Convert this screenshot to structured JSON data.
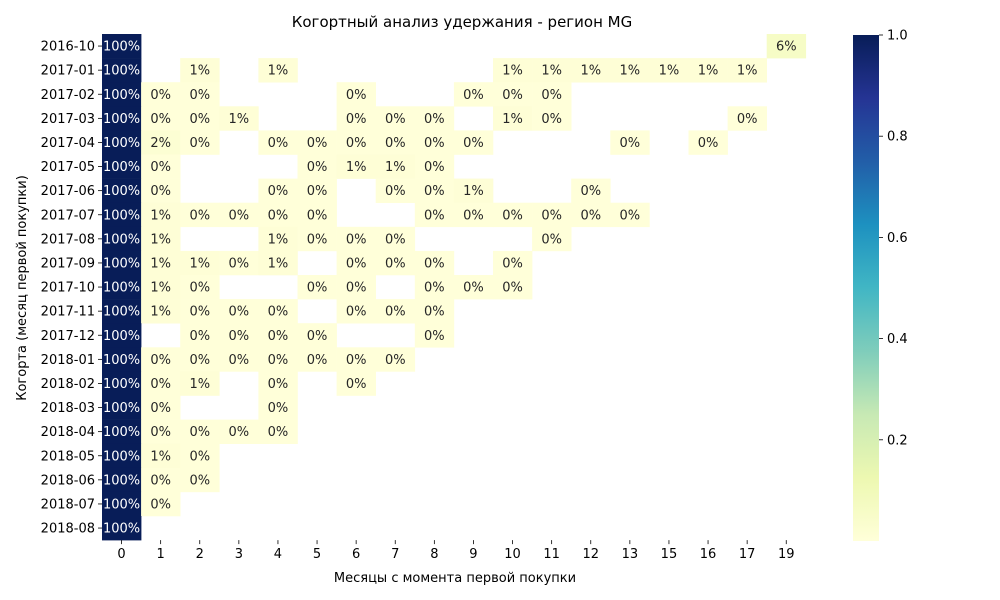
{
  "chart_data": {
    "type": "heatmap",
    "title": "Когортный анализ удержания - регион MG",
    "xlabel": "Месяцы с момента первой покупки",
    "ylabel": "Когорта (месяц первой покупки)",
    "x_categories": [
      "0",
      "1",
      "2",
      "3",
      "4",
      "5",
      "6",
      "7",
      "8",
      "9",
      "10",
      "11",
      "12",
      "13",
      "15",
      "16",
      "17",
      "19"
    ],
    "y_categories": [
      "2016-10",
      "2017-01",
      "2017-02",
      "2017-03",
      "2017-04",
      "2017-05",
      "2017-06",
      "2017-07",
      "2017-08",
      "2017-09",
      "2017-10",
      "2017-11",
      "2017-12",
      "2018-01",
      "2018-02",
      "2018-03",
      "2018-04",
      "2018-05",
      "2018-06",
      "2018-07",
      "2018-08"
    ],
    "value_format": "percent",
    "colormap": "YlGnBu",
    "colorbar": {
      "range": [
        0,
        1.0
      ],
      "ticks": [
        "0.2",
        "0.4",
        "0.6",
        "0.8",
        "1.0"
      ]
    },
    "colors": {
      "low": "#ffffd9",
      "high": "#081d58"
    },
    "cells": [
      {
        "y": "2016-10",
        "x": "0",
        "label": "100%",
        "value": 1.0
      },
      {
        "y": "2016-10",
        "x": "19",
        "label": "6%",
        "value": 0.06
      },
      {
        "y": "2017-01",
        "x": "0",
        "label": "100%",
        "value": 1.0
      },
      {
        "y": "2017-01",
        "x": "2",
        "label": "1%",
        "value": 0.01
      },
      {
        "y": "2017-01",
        "x": "4",
        "label": "1%",
        "value": 0.01
      },
      {
        "y": "2017-01",
        "x": "10",
        "label": "1%",
        "value": 0.01
      },
      {
        "y": "2017-01",
        "x": "11",
        "label": "1%",
        "value": 0.01
      },
      {
        "y": "2017-01",
        "x": "12",
        "label": "1%",
        "value": 0.01
      },
      {
        "y": "2017-01",
        "x": "13",
        "label": "1%",
        "value": 0.01
      },
      {
        "y": "2017-01",
        "x": "15",
        "label": "1%",
        "value": 0.01
      },
      {
        "y": "2017-01",
        "x": "16",
        "label": "1%",
        "value": 0.01
      },
      {
        "y": "2017-01",
        "x": "17",
        "label": "1%",
        "value": 0.01
      },
      {
        "y": "2017-02",
        "x": "0",
        "label": "100%",
        "value": 1.0
      },
      {
        "y": "2017-02",
        "x": "1",
        "label": "0%",
        "value": 0.0
      },
      {
        "y": "2017-02",
        "x": "2",
        "label": "0%",
        "value": 0.0
      },
      {
        "y": "2017-02",
        "x": "6",
        "label": "0%",
        "value": 0.0
      },
      {
        "y": "2017-02",
        "x": "9",
        "label": "0%",
        "value": 0.0
      },
      {
        "y": "2017-02",
        "x": "10",
        "label": "0%",
        "value": 0.0
      },
      {
        "y": "2017-02",
        "x": "11",
        "label": "0%",
        "value": 0.0
      },
      {
        "y": "2017-03",
        "x": "0",
        "label": "100%",
        "value": 1.0
      },
      {
        "y": "2017-03",
        "x": "1",
        "label": "0%",
        "value": 0.0
      },
      {
        "y": "2017-03",
        "x": "2",
        "label": "0%",
        "value": 0.0
      },
      {
        "y": "2017-03",
        "x": "3",
        "label": "1%",
        "value": 0.01
      },
      {
        "y": "2017-03",
        "x": "6",
        "label": "0%",
        "value": 0.0
      },
      {
        "y": "2017-03",
        "x": "7",
        "label": "0%",
        "value": 0.0
      },
      {
        "y": "2017-03",
        "x": "8",
        "label": "0%",
        "value": 0.0
      },
      {
        "y": "2017-03",
        "x": "10",
        "label": "1%",
        "value": 0.01
      },
      {
        "y": "2017-03",
        "x": "11",
        "label": "0%",
        "value": 0.0
      },
      {
        "y": "2017-03",
        "x": "17",
        "label": "0%",
        "value": 0.0
      },
      {
        "y": "2017-04",
        "x": "0",
        "label": "100%",
        "value": 1.0
      },
      {
        "y": "2017-04",
        "x": "1",
        "label": "2%",
        "value": 0.02
      },
      {
        "y": "2017-04",
        "x": "2",
        "label": "0%",
        "value": 0.0
      },
      {
        "y": "2017-04",
        "x": "4",
        "label": "0%",
        "value": 0.0
      },
      {
        "y": "2017-04",
        "x": "5",
        "label": "0%",
        "value": 0.0
      },
      {
        "y": "2017-04",
        "x": "6",
        "label": "0%",
        "value": 0.0
      },
      {
        "y": "2017-04",
        "x": "7",
        "label": "0%",
        "value": 0.0
      },
      {
        "y": "2017-04",
        "x": "8",
        "label": "0%",
        "value": 0.0
      },
      {
        "y": "2017-04",
        "x": "9",
        "label": "0%",
        "value": 0.0
      },
      {
        "y": "2017-04",
        "x": "13",
        "label": "0%",
        "value": 0.0
      },
      {
        "y": "2017-04",
        "x": "16",
        "label": "0%",
        "value": 0.0
      },
      {
        "y": "2017-05",
        "x": "0",
        "label": "100%",
        "value": 1.0
      },
      {
        "y": "2017-05",
        "x": "1",
        "label": "0%",
        "value": 0.0
      },
      {
        "y": "2017-05",
        "x": "5",
        "label": "0%",
        "value": 0.0
      },
      {
        "y": "2017-05",
        "x": "6",
        "label": "1%",
        "value": 0.01
      },
      {
        "y": "2017-05",
        "x": "7",
        "label": "1%",
        "value": 0.01
      },
      {
        "y": "2017-05",
        "x": "8",
        "label": "0%",
        "value": 0.0
      },
      {
        "y": "2017-06",
        "x": "0",
        "label": "100%",
        "value": 1.0
      },
      {
        "y": "2017-06",
        "x": "1",
        "label": "0%",
        "value": 0.0
      },
      {
        "y": "2017-06",
        "x": "4",
        "label": "0%",
        "value": 0.0
      },
      {
        "y": "2017-06",
        "x": "5",
        "label": "0%",
        "value": 0.0
      },
      {
        "y": "2017-06",
        "x": "7",
        "label": "0%",
        "value": 0.0
      },
      {
        "y": "2017-06",
        "x": "8",
        "label": "0%",
        "value": 0.0
      },
      {
        "y": "2017-06",
        "x": "9",
        "label": "1%",
        "value": 0.01
      },
      {
        "y": "2017-06",
        "x": "12",
        "label": "0%",
        "value": 0.0
      },
      {
        "y": "2017-07",
        "x": "0",
        "label": "100%",
        "value": 1.0
      },
      {
        "y": "2017-07",
        "x": "1",
        "label": "1%",
        "value": 0.01
      },
      {
        "y": "2017-07",
        "x": "2",
        "label": "0%",
        "value": 0.0
      },
      {
        "y": "2017-07",
        "x": "3",
        "label": "0%",
        "value": 0.0
      },
      {
        "y": "2017-07",
        "x": "4",
        "label": "0%",
        "value": 0.0
      },
      {
        "y": "2017-07",
        "x": "5",
        "label": "0%",
        "value": 0.0
      },
      {
        "y": "2017-07",
        "x": "8",
        "label": "0%",
        "value": 0.0
      },
      {
        "y": "2017-07",
        "x": "9",
        "label": "0%",
        "value": 0.0
      },
      {
        "y": "2017-07",
        "x": "10",
        "label": "0%",
        "value": 0.0
      },
      {
        "y": "2017-07",
        "x": "11",
        "label": "0%",
        "value": 0.0
      },
      {
        "y": "2017-07",
        "x": "12",
        "label": "0%",
        "value": 0.0
      },
      {
        "y": "2017-07",
        "x": "13",
        "label": "0%",
        "value": 0.0
      },
      {
        "y": "2017-08",
        "x": "0",
        "label": "100%",
        "value": 1.0
      },
      {
        "y": "2017-08",
        "x": "1",
        "label": "1%",
        "value": 0.01
      },
      {
        "y": "2017-08",
        "x": "4",
        "label": "1%",
        "value": 0.01
      },
      {
        "y": "2017-08",
        "x": "5",
        "label": "0%",
        "value": 0.0
      },
      {
        "y": "2017-08",
        "x": "6",
        "label": "0%",
        "value": 0.0
      },
      {
        "y": "2017-08",
        "x": "7",
        "label": "0%",
        "value": 0.0
      },
      {
        "y": "2017-08",
        "x": "11",
        "label": "0%",
        "value": 0.0
      },
      {
        "y": "2017-09",
        "x": "0",
        "label": "100%",
        "value": 1.0
      },
      {
        "y": "2017-09",
        "x": "1",
        "label": "1%",
        "value": 0.01
      },
      {
        "y": "2017-09",
        "x": "2",
        "label": "1%",
        "value": 0.01
      },
      {
        "y": "2017-09",
        "x": "3",
        "label": "0%",
        "value": 0.0
      },
      {
        "y": "2017-09",
        "x": "4",
        "label": "1%",
        "value": 0.01
      },
      {
        "y": "2017-09",
        "x": "6",
        "label": "0%",
        "value": 0.0
      },
      {
        "y": "2017-09",
        "x": "7",
        "label": "0%",
        "value": 0.0
      },
      {
        "y": "2017-09",
        "x": "8",
        "label": "0%",
        "value": 0.0
      },
      {
        "y": "2017-09",
        "x": "10",
        "label": "0%",
        "value": 0.0
      },
      {
        "y": "2017-10",
        "x": "0",
        "label": "100%",
        "value": 1.0
      },
      {
        "y": "2017-10",
        "x": "1",
        "label": "1%",
        "value": 0.01
      },
      {
        "y": "2017-10",
        "x": "2",
        "label": "0%",
        "value": 0.0
      },
      {
        "y": "2017-10",
        "x": "5",
        "label": "0%",
        "value": 0.0
      },
      {
        "y": "2017-10",
        "x": "6",
        "label": "0%",
        "value": 0.0
      },
      {
        "y": "2017-10",
        "x": "8",
        "label": "0%",
        "value": 0.0
      },
      {
        "y": "2017-10",
        "x": "9",
        "label": "0%",
        "value": 0.0
      },
      {
        "y": "2017-10",
        "x": "10",
        "label": "0%",
        "value": 0.0
      },
      {
        "y": "2017-11",
        "x": "0",
        "label": "100%",
        "value": 1.0
      },
      {
        "y": "2017-11",
        "x": "1",
        "label": "1%",
        "value": 0.01
      },
      {
        "y": "2017-11",
        "x": "2",
        "label": "0%",
        "value": 0.0
      },
      {
        "y": "2017-11",
        "x": "3",
        "label": "0%",
        "value": 0.0
      },
      {
        "y": "2017-11",
        "x": "4",
        "label": "0%",
        "value": 0.0
      },
      {
        "y": "2017-11",
        "x": "6",
        "label": "0%",
        "value": 0.0
      },
      {
        "y": "2017-11",
        "x": "7",
        "label": "0%",
        "value": 0.0
      },
      {
        "y": "2017-11",
        "x": "8",
        "label": "0%",
        "value": 0.0
      },
      {
        "y": "2017-12",
        "x": "0",
        "label": "100%",
        "value": 1.0
      },
      {
        "y": "2017-12",
        "x": "2",
        "label": "0%",
        "value": 0.0
      },
      {
        "y": "2017-12",
        "x": "3",
        "label": "0%",
        "value": 0.0
      },
      {
        "y": "2017-12",
        "x": "4",
        "label": "0%",
        "value": 0.0
      },
      {
        "y": "2017-12",
        "x": "5",
        "label": "0%",
        "value": 0.0
      },
      {
        "y": "2017-12",
        "x": "8",
        "label": "0%",
        "value": 0.0
      },
      {
        "y": "2018-01",
        "x": "0",
        "label": "100%",
        "value": 1.0
      },
      {
        "y": "2018-01",
        "x": "1",
        "label": "0%",
        "value": 0.0
      },
      {
        "y": "2018-01",
        "x": "2",
        "label": "0%",
        "value": 0.0
      },
      {
        "y": "2018-01",
        "x": "3",
        "label": "0%",
        "value": 0.0
      },
      {
        "y": "2018-01",
        "x": "4",
        "label": "0%",
        "value": 0.0
      },
      {
        "y": "2018-01",
        "x": "5",
        "label": "0%",
        "value": 0.0
      },
      {
        "y": "2018-01",
        "x": "6",
        "label": "0%",
        "value": 0.0
      },
      {
        "y": "2018-01",
        "x": "7",
        "label": "0%",
        "value": 0.0
      },
      {
        "y": "2018-02",
        "x": "0",
        "label": "100%",
        "value": 1.0
      },
      {
        "y": "2018-02",
        "x": "1",
        "label": "0%",
        "value": 0.0
      },
      {
        "y": "2018-02",
        "x": "2",
        "label": "1%",
        "value": 0.01
      },
      {
        "y": "2018-02",
        "x": "4",
        "label": "0%",
        "value": 0.0
      },
      {
        "y": "2018-02",
        "x": "6",
        "label": "0%",
        "value": 0.0
      },
      {
        "y": "2018-03",
        "x": "0",
        "label": "100%",
        "value": 1.0
      },
      {
        "y": "2018-03",
        "x": "1",
        "label": "0%",
        "value": 0.0
      },
      {
        "y": "2018-03",
        "x": "4",
        "label": "0%",
        "value": 0.0
      },
      {
        "y": "2018-04",
        "x": "0",
        "label": "100%",
        "value": 1.0
      },
      {
        "y": "2018-04",
        "x": "1",
        "label": "0%",
        "value": 0.0
      },
      {
        "y": "2018-04",
        "x": "2",
        "label": "0%",
        "value": 0.0
      },
      {
        "y": "2018-04",
        "x": "3",
        "label": "0%",
        "value": 0.0
      },
      {
        "y": "2018-04",
        "x": "4",
        "label": "0%",
        "value": 0.0
      },
      {
        "y": "2018-05",
        "x": "0",
        "label": "100%",
        "value": 1.0
      },
      {
        "y": "2018-05",
        "x": "1",
        "label": "1%",
        "value": 0.01
      },
      {
        "y": "2018-05",
        "x": "2",
        "label": "0%",
        "value": 0.0
      },
      {
        "y": "2018-06",
        "x": "0",
        "label": "100%",
        "value": 1.0
      },
      {
        "y": "2018-06",
        "x": "1",
        "label": "0%",
        "value": 0.0
      },
      {
        "y": "2018-06",
        "x": "2",
        "label": "0%",
        "value": 0.0
      },
      {
        "y": "2018-07",
        "x": "0",
        "label": "100%",
        "value": 1.0
      },
      {
        "y": "2018-07",
        "x": "1",
        "label": "0%",
        "value": 0.0
      },
      {
        "y": "2018-08",
        "x": "0",
        "label": "100%",
        "value": 1.0
      }
    ]
  }
}
